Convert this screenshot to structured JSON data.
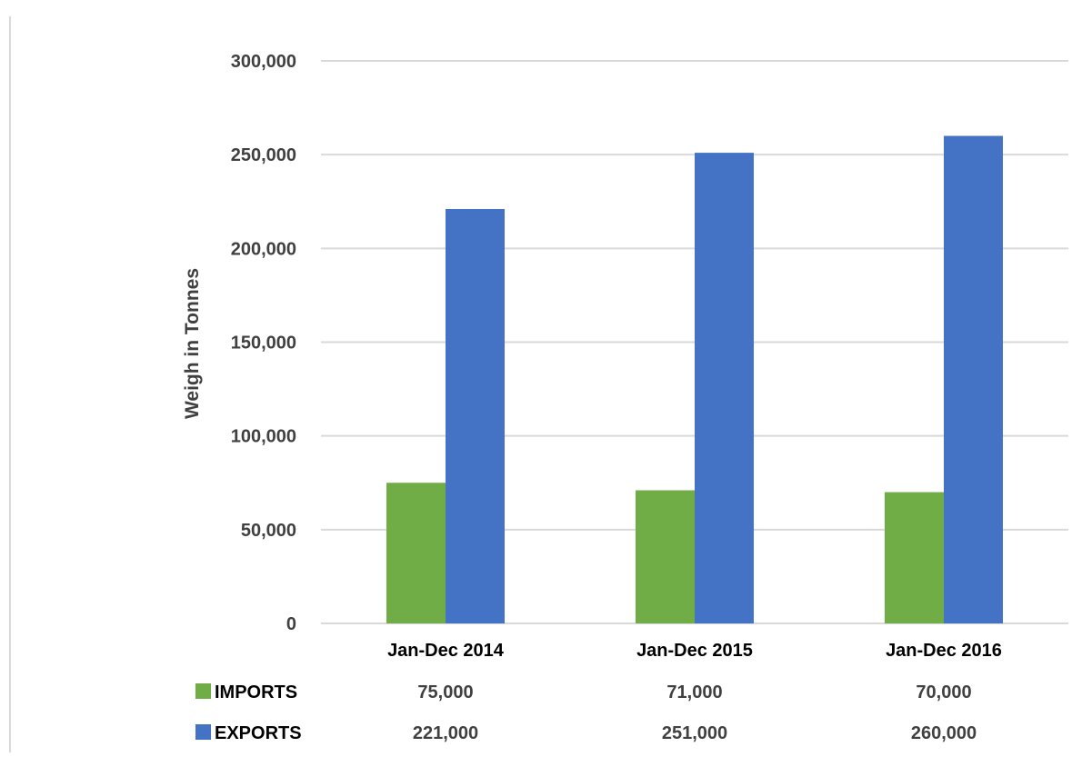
{
  "chart_data": {
    "type": "bar",
    "categories": [
      "Jan-Dec 2014",
      "Jan-Dec 2015",
      "Jan-Dec 2016"
    ],
    "series": [
      {
        "name": "IMPORTS",
        "values": [
          75000,
          71000,
          70000
        ],
        "color": "#70ad47",
        "labels": [
          "75,000",
          "71,000",
          "70,000"
        ]
      },
      {
        "name": "EXPORTS",
        "values": [
          221000,
          251000,
          260000
        ],
        "color": "#4472c4",
        "labels": [
          "221,000",
          "251,000",
          "260,000"
        ]
      }
    ],
    "ylabel": "Weigh in Tonnes",
    "ylim": [
      0,
      300000
    ],
    "yticks": [
      0,
      50000,
      100000,
      150000,
      200000,
      250000,
      300000
    ],
    "ytick_labels": [
      "0",
      "50,000",
      "100,000",
      "150,000",
      "200,000",
      "250,000",
      "300,000"
    ],
    "grid": true,
    "legend": "bottom data table",
    "gridline_color": "#d9d9d9"
  }
}
